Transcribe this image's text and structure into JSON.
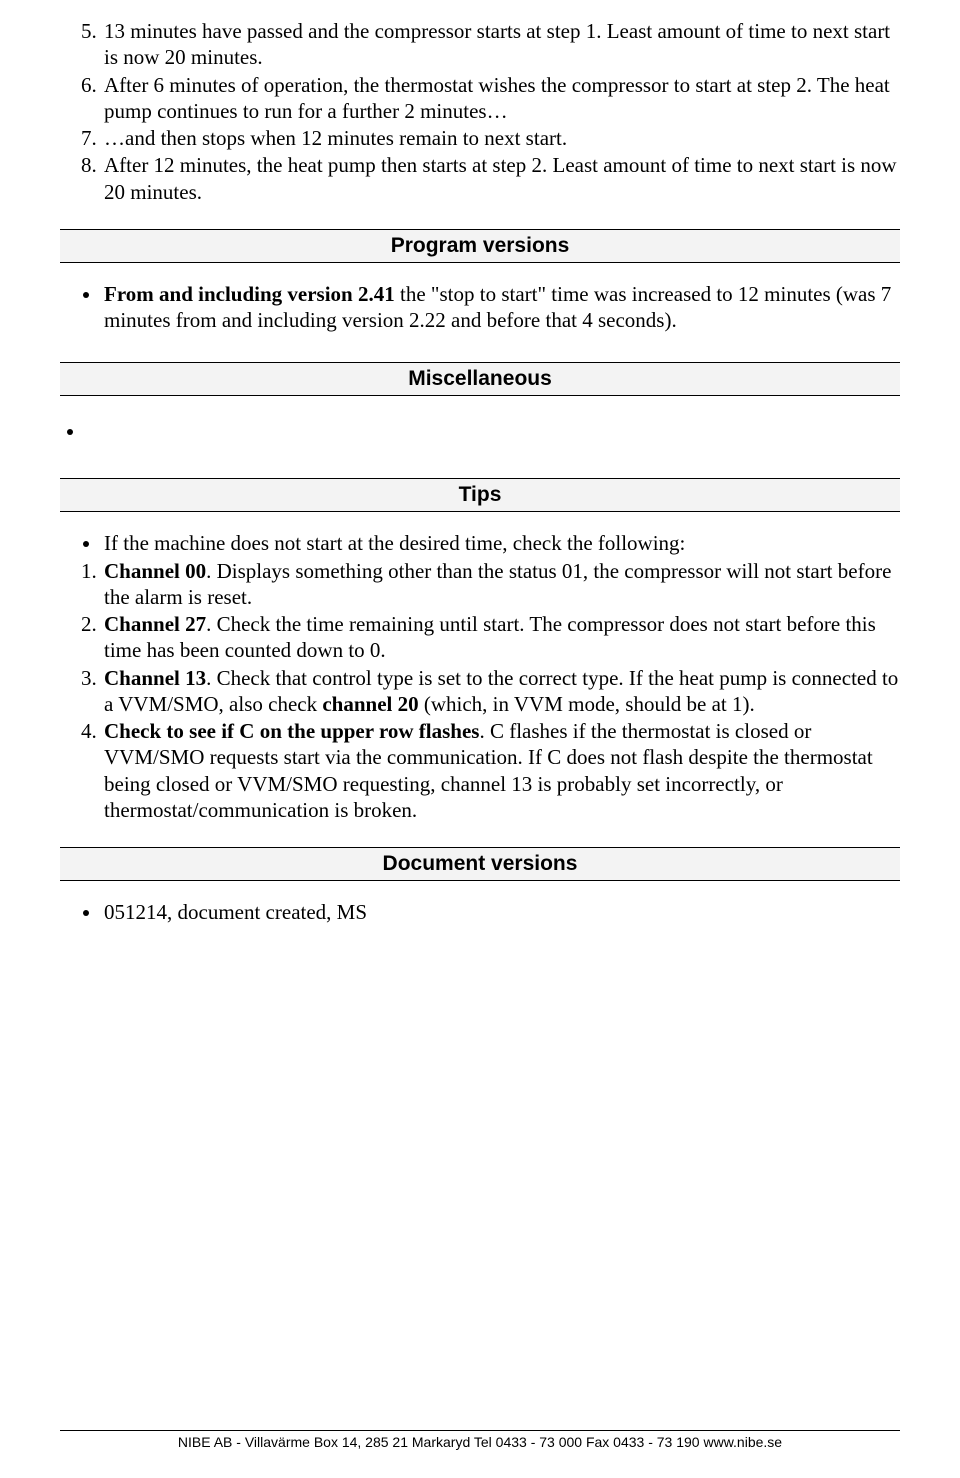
{
  "colors": {
    "page_bg": "#ffffff",
    "text": "#000000",
    "heading_bg": "#f3f3f3",
    "border": "#000000"
  },
  "typography": {
    "body_font": "Times New Roman",
    "heading_font": "Arial",
    "body_fontsize_pt": 16,
    "heading_fontsize_pt": 16,
    "footer_fontsize_pt": 10.5
  },
  "numbered_list_start": 5,
  "numbered_items": [
    "13 minutes have passed and the compressor starts at step 1. Least amount of time to next start is now 20 minutes.",
    "After 6 minutes of operation, the thermostat wishes the compressor to start at step 2. The heat pump continues to run for a further 2 minutes…",
    "…and then stops when 12 minutes remain to next start.",
    "After 12 minutes, the heat pump then starts at step 2. Least amount of time to next start is now 20 minutes."
  ],
  "sections": {
    "program_versions": {
      "heading": "Program versions",
      "bullets": [
        {
          "lead_bold": "From and including version 2.41",
          "rest": " the \"stop to start\" time was increased to 12 minutes (was 7 minutes from and including version 2.22 and before that 4 seconds)."
        }
      ]
    },
    "miscellaneous": {
      "heading": "Miscellaneous"
    },
    "tips": {
      "heading": "Tips",
      "lead_bullet": "If the machine does not start at the desired time, check the following:",
      "items": [
        {
          "bold": "Channel 00",
          "rest": ". Displays something other than the status 01, the compressor will not start before the alarm is reset."
        },
        {
          "bold": "Channel 27",
          "rest": ". Check the time remaining until start. The compressor does not start before this time has been counted down to 0."
        },
        {
          "bold": "Channel 13",
          "rest_pre": ". Check that control type is set to the correct type. If the heat pump is connected to a VVM/SMO, also check ",
          "bold2": "channel 20",
          "rest_post": " (which, in VVM mode, should be at 1)."
        },
        {
          "bold": "Check to see if C on the upper row flashes",
          "rest": ". C flashes if the thermostat is closed or VVM/SMO requests start via the communication. If C does not flash despite the thermostat being closed or VVM/SMO requesting, channel 13 is probably set incorrectly, or thermostat/communication is broken."
        }
      ]
    },
    "document_versions": {
      "heading": "Document versions",
      "bullets": [
        "051214, document created, MS"
      ]
    }
  },
  "footer": "NIBE AB - Villavärme  Box 14, 285 21 Markaryd  Tel 0433 - 73 000  Fax 0433 - 73 190  www.nibe.se"
}
